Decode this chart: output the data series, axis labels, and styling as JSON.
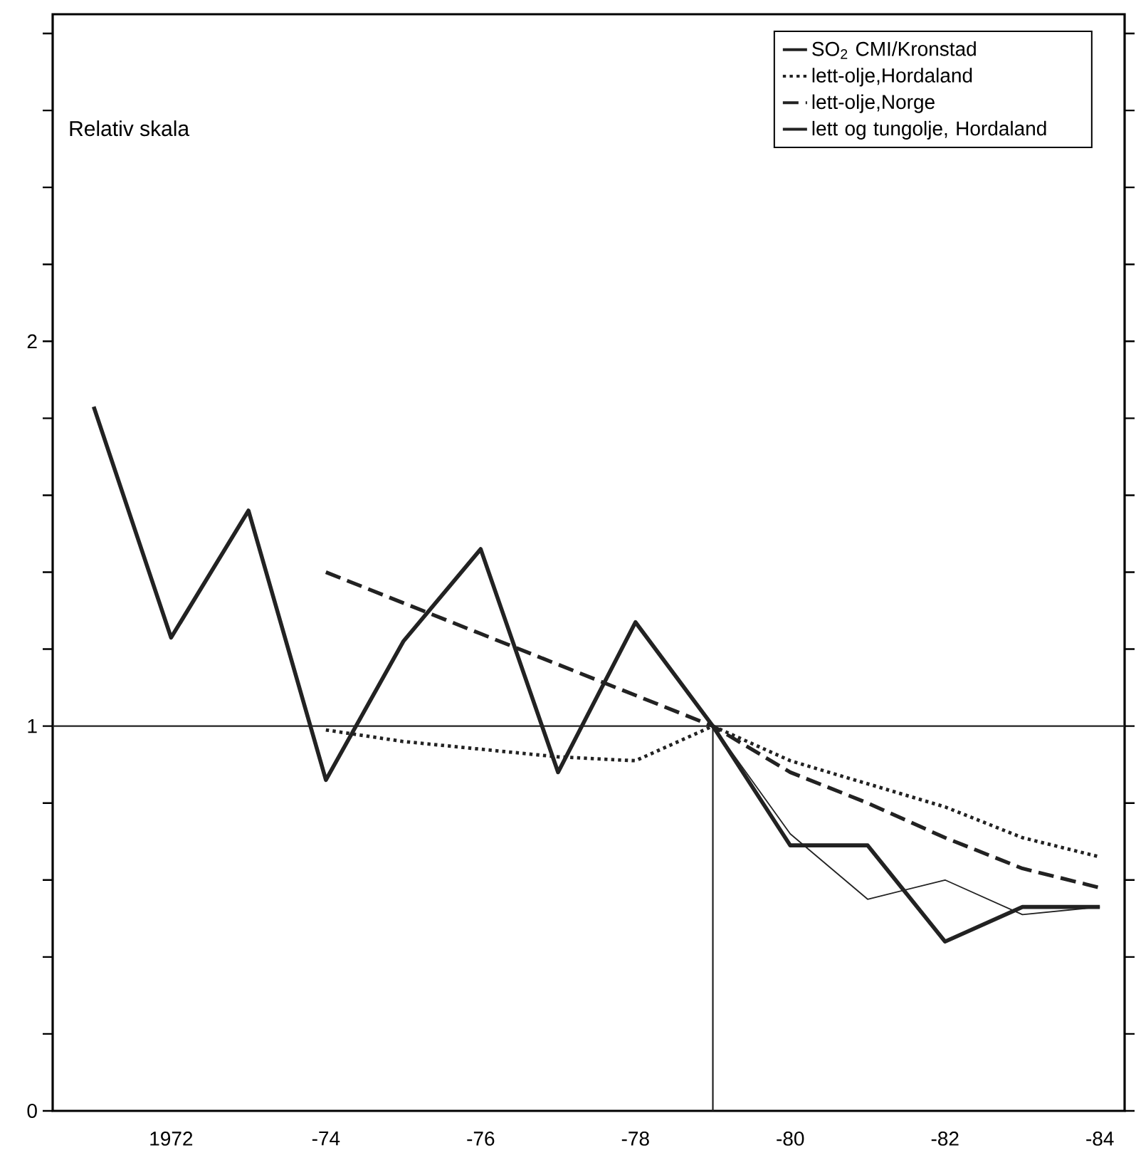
{
  "chart_data": {
    "type": "line",
    "ylabel": "Relativ skala",
    "categories": [
      null,
      "1972",
      null,
      "-74",
      null,
      "-76",
      null,
      "-78",
      null,
      "-80",
      null,
      "-82",
      null,
      "-84"
    ],
    "ylim": [
      0,
      2.85
    ],
    "yticks": [
      0,
      {
        "value": 0.2,
        "label": null
      },
      {
        "value": 0.4,
        "label": null
      },
      {
        "value": 0.6,
        "label": null
      },
      {
        "value": 0.8,
        "label": null
      },
      1,
      {
        "value": 1.2,
        "label": null
      },
      {
        "value": 1.4,
        "label": null
      },
      {
        "value": 1.6,
        "label": null
      },
      {
        "value": 1.8,
        "label": null
      },
      2,
      {
        "value": 2.2,
        "label": null
      },
      {
        "value": 2.4,
        "label": null
      },
      {
        "value": 2.6,
        "label": null
      },
      {
        "value": 2.8,
        "label": null
      }
    ],
    "series": [
      {
        "name": "SO$_{2}$ CMI/Kronstad",
        "color": "#222222",
        "line_style": "solid",
        "values": [
          1.83,
          1.23,
          1.56,
          0.86,
          1.22,
          1.46,
          0.88,
          1.27,
          1.0,
          0.69,
          0.69,
          0.44,
          0.53,
          0.53
        ]
      },
      {
        "name": "lett-olje,Hordaland",
        "color": "#222222",
        "line_style": "dotted",
        "values": [
          null,
          null,
          null,
          0.99,
          0.96,
          0.94,
          0.92,
          0.91,
          1.0,
          0.91,
          0.85,
          0.79,
          0.71,
          0.66
        ]
      },
      {
        "name": "lett-olje,Norge",
        "color": "#222222",
        "line_style": "dashed",
        "values": [
          null,
          null,
          null,
          1.4,
          1.32,
          1.24,
          1.16,
          1.08,
          1.0,
          0.88,
          0.8,
          0.71,
          0.63,
          0.58
        ]
      },
      {
        "name": "lett og tungolje, Hordaland",
        "color": "#222222",
        "line_style": "solid",
        "values": [
          null,
          null,
          null,
          null,
          null,
          null,
          null,
          null,
          1.0,
          0.72,
          0.55,
          0.6,
          0.51,
          0.53
        ]
      }
    ],
    "ref_lines": [
      {
        "axis": "y",
        "value": 1,
        "color": "#222222"
      }
    ],
    "legend": "top right",
    "grid": false,
    "marker": "none"
  }
}
